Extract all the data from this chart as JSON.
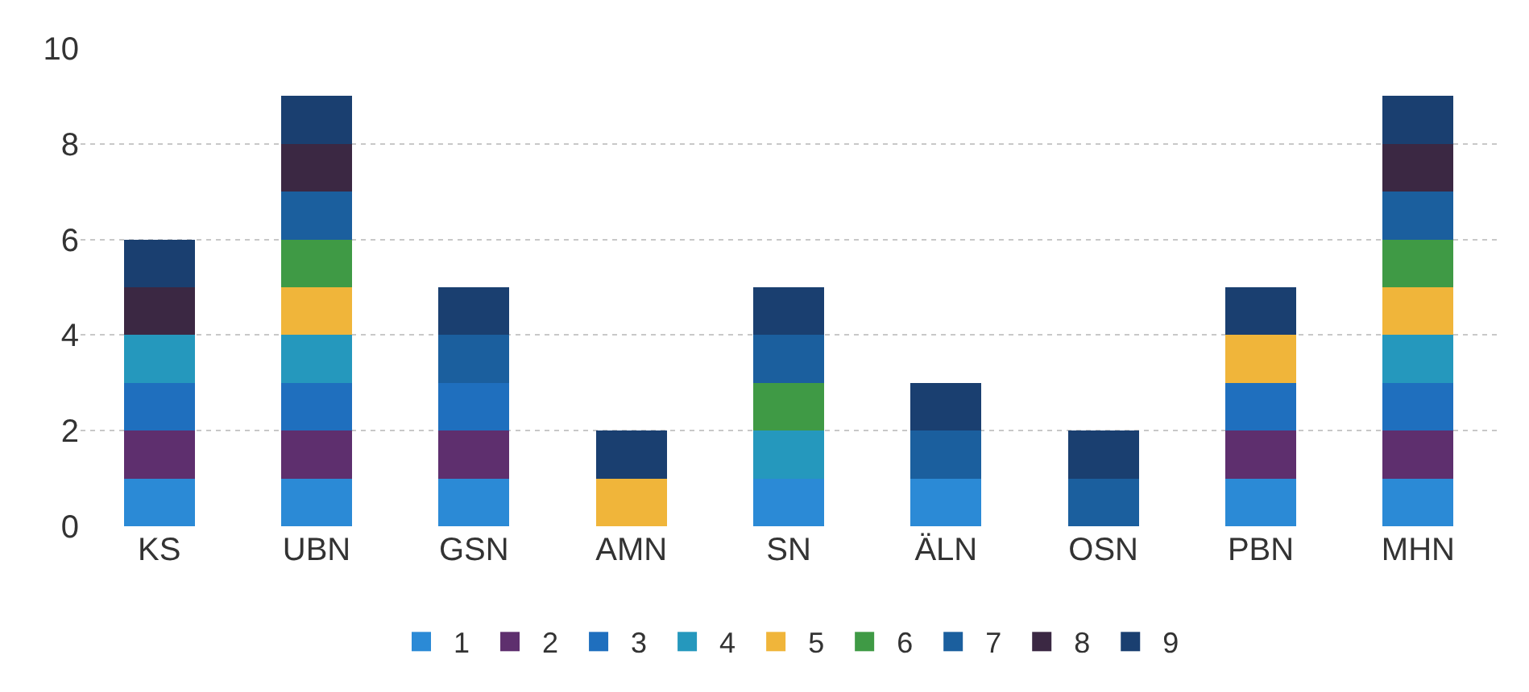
{
  "chart_data": {
    "type": "bar",
    "stacked": true,
    "categories": [
      "KS",
      "UBN",
      "GSN",
      "AMN",
      "SN",
      "ÄLN",
      "OSN",
      "PBN",
      "MHN"
    ],
    "series": [
      {
        "name": "1",
        "color": "#2b8ad6",
        "values": [
          1,
          1,
          1,
          0,
          1,
          1,
          0,
          1,
          1
        ]
      },
      {
        "name": "2",
        "color": "#5e2f6e",
        "values": [
          1,
          1,
          1,
          0,
          0,
          0,
          0,
          1,
          1
        ]
      },
      {
        "name": "3",
        "color": "#1f6fbe",
        "values": [
          1,
          1,
          1,
          0,
          0,
          0,
          0,
          1,
          1
        ]
      },
      {
        "name": "4",
        "color": "#2598bd",
        "values": [
          1,
          1,
          0,
          0,
          1,
          0,
          0,
          0,
          1
        ]
      },
      {
        "name": "5",
        "color": "#f0b53a",
        "values": [
          0,
          1,
          0,
          1,
          0,
          0,
          0,
          1,
          1
        ]
      },
      {
        "name": "6",
        "color": "#3f9a45",
        "values": [
          0,
          1,
          0,
          0,
          1,
          0,
          0,
          0,
          1
        ]
      },
      {
        "name": "7",
        "color": "#1b5f9e",
        "values": [
          0,
          1,
          1,
          0,
          1,
          1,
          1,
          0,
          1
        ]
      },
      {
        "name": "8",
        "color": "#3b2843",
        "values": [
          1,
          1,
          0,
          0,
          0,
          0,
          0,
          0,
          1
        ]
      },
      {
        "name": "9",
        "color": "#1a3f70",
        "values": [
          1,
          1,
          1,
          1,
          1,
          1,
          1,
          1,
          1
        ]
      }
    ],
    "ylim": [
      0,
      10
    ],
    "yticks": [
      0,
      2,
      4,
      6,
      8,
      10
    ],
    "grid": "y",
    "legend": "bottom"
  }
}
